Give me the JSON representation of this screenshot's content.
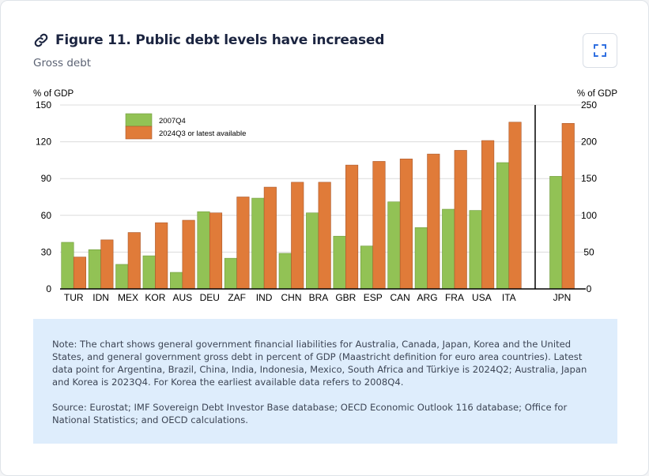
{
  "header": {
    "title": "Figure 11. Public debt levels have increased",
    "subtitle": "Gross debt",
    "link_icon": "link-icon",
    "expand_icon": "expand-icon"
  },
  "colors": {
    "series_2007": "#92c255",
    "series_2024": "#e07b39",
    "note_bg": "#deedfc",
    "title": "#1b2440",
    "accent": "#2f6fe0"
  },
  "chart_data": {
    "type": "bar",
    "title": "Figure 11. Public debt levels have increased",
    "subtitle": "Gross debt",
    "ylabel_left": "% of GDP",
    "ylabel_right": "% of GDP",
    "ylim_left": [
      0,
      150
    ],
    "yticks_left": [
      0,
      30,
      60,
      90,
      120,
      150
    ],
    "ylim_right": [
      0,
      250
    ],
    "yticks_right": [
      0,
      50,
      100,
      150,
      200,
      250
    ],
    "grid": true,
    "legend_position": "top-left-inside",
    "categories": [
      "TUR",
      "IDN",
      "MEX",
      "KOR",
      "AUS",
      "DEU",
      "ZAF",
      "IND",
      "CHN",
      "BRA",
      "GBR",
      "ESP",
      "CAN",
      "ARG",
      "FRA",
      "USA",
      "ITA"
    ],
    "series": [
      {
        "name": "2007Q4",
        "values": [
          38,
          32,
          20,
          27,
          13.5,
          63,
          25,
          74,
          29,
          62,
          43,
          35,
          71,
          50,
          65,
          64,
          103
        ]
      },
      {
        "name": "2024Q3 or latest available",
        "values": [
          26,
          40,
          46,
          54,
          56,
          62,
          75,
          83,
          87,
          87,
          101,
          104,
          106,
          110,
          113,
          121,
          136
        ]
      }
    ],
    "right_axis_categories": [
      "JPN"
    ],
    "right_axis_series": [
      {
        "name": "2007Q4",
        "values": [
          153
        ]
      },
      {
        "name": "2024Q3 or latest available",
        "values": [
          225
        ]
      }
    ]
  },
  "note": {
    "note_text": "Note: The chart shows general government financial liabilities for Australia, Canada, Japan, Korea and the United States, and general government gross debt in percent of GDP (Maastricht definition for euro area countries). Latest data point for Argentina, Brazil, China, India, Indonesia, Mexico, South Africa and Türkiye is 2024Q2; Australia, Japan and Korea is 2023Q4. For Korea the earliest available data refers to 2008Q4.",
    "source_text": "Source: Eurostat; IMF Sovereign Debt Investor Base database; OECD Economic Outlook 116 database; Office for National Statistics; and OECD calculations."
  }
}
